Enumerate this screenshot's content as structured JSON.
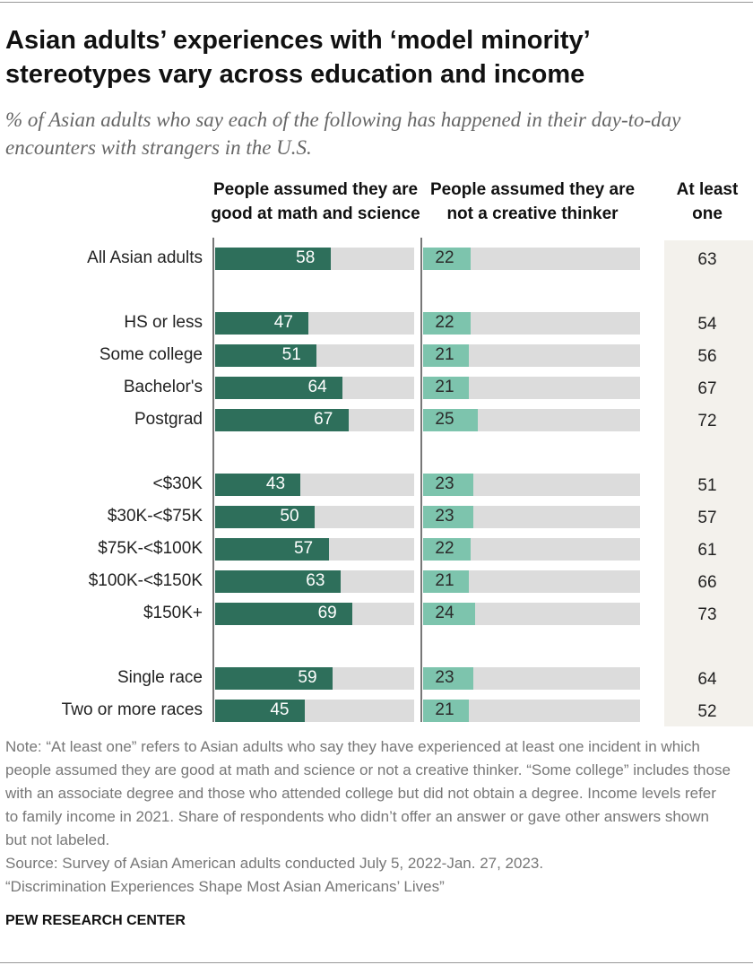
{
  "chart_data": {
    "type": "bar",
    "orientation": "horizontal",
    "title": "Asian adults’ experiences with ‘model minority’ stereotypes vary across education and income",
    "subtitle": "% of Asian adults who say each of the following has happened in their day-to-day encounters with strangers in the U.S.",
    "categories": [
      "All Asian adults",
      "HS or less",
      "Some college",
      "Bachelor's",
      "Postgrad",
      "<$30K",
      "$30K-<$75K",
      "$75K-<$100K",
      "$100K-<$150K",
      "$150K+",
      "Single race",
      "Two or more races"
    ],
    "xlim": [
      0,
      100
    ],
    "series": [
      {
        "name": "People assumed they are good at math and science",
        "color": "#2e6f5b",
        "label_color": "#ffffff",
        "values": [
          58,
          47,
          51,
          64,
          67,
          43,
          50,
          57,
          63,
          69,
          59,
          45
        ]
      },
      {
        "name": "People assumed they are not a creative thinker",
        "color": "#7dc4ad",
        "label_color": "#2b2b2b",
        "values": [
          22,
          22,
          21,
          21,
          25,
          23,
          23,
          22,
          21,
          24,
          23,
          21
        ]
      }
    ],
    "column": {
      "name": "At least one",
      "values": [
        63,
        54,
        56,
        67,
        72,
        51,
        57,
        61,
        66,
        73,
        64,
        52
      ]
    },
    "note": "Note: “At least one” refers to Asian adults who say they have experienced at least one incident in which people assumed they are good at math and science or not a creative thinker. “Some college” includes those with an associate degree and those who attended college but did not obtain a degree. Income levels refer to family income in 2021. Share of respondents who didn’t offer an answer or gave other answers shown but not labeled.",
    "source": "Source: Survey of Asian American adults conducted July 5, 2022-Jan. 27, 2023.",
    "report": "“Discrimination Experiences Shape Most Asian Americans’ Lives”",
    "footer": "PEW RESEARCH CENTER"
  }
}
